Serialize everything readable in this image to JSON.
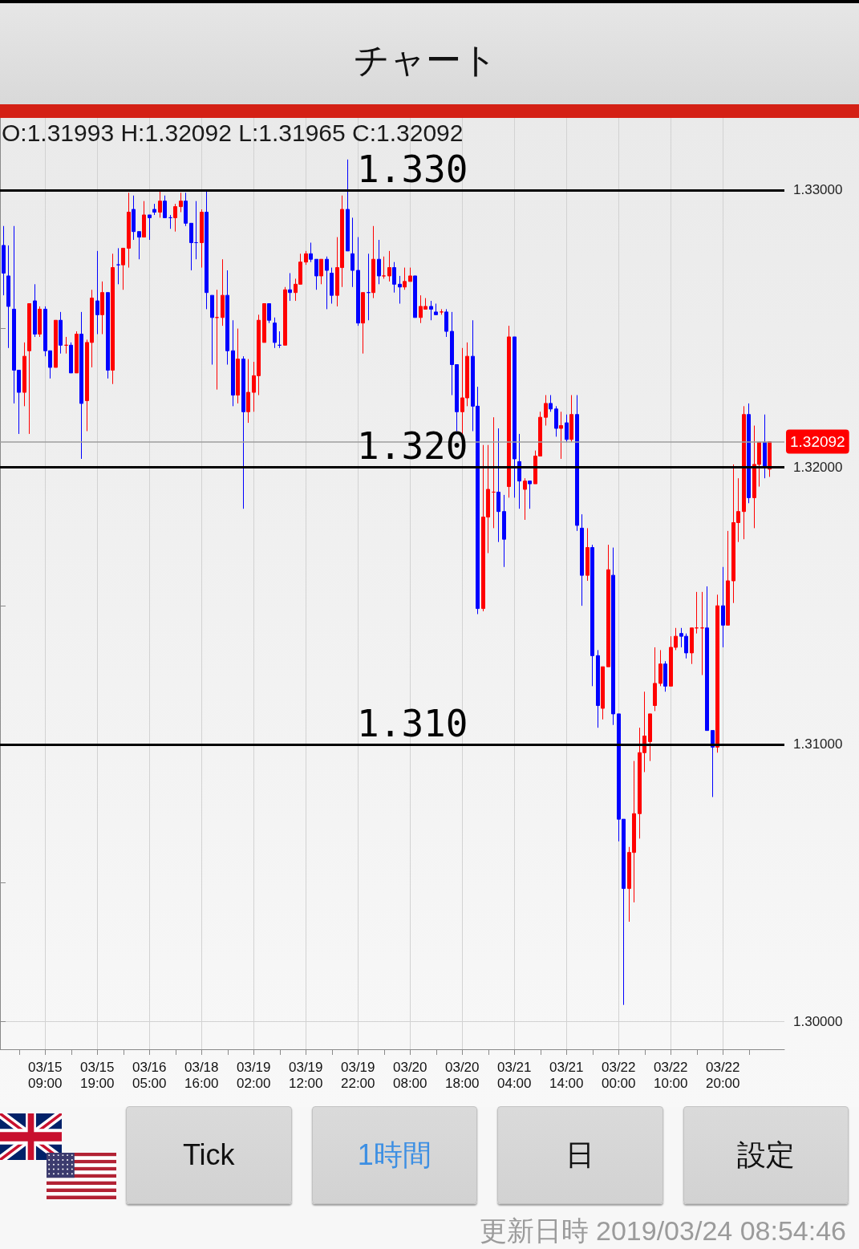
{
  "chart_data": {
    "type": "candlestick",
    "title": "チャート",
    "categories": [
      null,
      null,
      null,
      null,
      null,
      null,
      null,
      null,
      "03/15 09:00",
      null,
      null,
      null,
      null,
      null,
      null,
      null,
      null,
      null,
      "03/15 19:00",
      null,
      null,
      null,
      null,
      null,
      null,
      null,
      null,
      null,
      "03/16 05:00",
      null,
      null,
      null,
      null,
      null,
      null,
      null,
      null,
      null,
      "03/18 16:00",
      null,
      null,
      null,
      null,
      null,
      null,
      null,
      null,
      null,
      "03/19 02:00",
      null,
      null,
      null,
      null,
      null,
      null,
      null,
      null,
      null,
      "03/19 12:00",
      null,
      null,
      null,
      null,
      null,
      null,
      null,
      null,
      null,
      "03/19 22:00",
      null,
      null,
      null,
      null,
      null,
      null,
      null,
      null,
      null,
      "03/20 08:00",
      null,
      null,
      null,
      null,
      null,
      null,
      null,
      null,
      null,
      "03/20 18:00",
      null,
      null,
      null,
      null,
      null,
      null,
      null,
      null,
      null,
      "03/21 04:00",
      null,
      null,
      null,
      null,
      null,
      null,
      null,
      null,
      null,
      "03/21 14:00",
      null,
      null,
      null,
      null,
      null,
      null,
      null,
      null,
      null,
      "03/22 00:00",
      null,
      null,
      null,
      null,
      null,
      null,
      null,
      null,
      null,
      "03/22 10:00",
      null,
      null,
      null,
      null,
      null,
      null,
      null,
      null,
      null,
      "03/22 20:00",
      null,
      null,
      null,
      null,
      null,
      null,
      null,
      null,
      null
    ],
    "ohlc": [
      [
        1.328,
        1.3287,
        1.3262,
        1.327
      ],
      [
        1.3269,
        1.328,
        1.3243,
        1.3258
      ],
      [
        1.3257,
        1.3287,
        1.3223,
        1.3235
      ],
      [
        1.3235,
        1.3235,
        1.3212,
        1.3227
      ],
      [
        1.3227,
        1.3245,
        1.3222,
        1.324
      ],
      [
        1.3242,
        1.3259,
        1.3212,
        1.3259
      ],
      [
        1.326,
        1.3266,
        1.3247,
        1.3248
      ],
      [
        1.3248,
        1.3258,
        1.3247,
        1.3257
      ],
      [
        1.3257,
        1.3258,
        1.324,
        1.3242
      ],
      [
        1.3242,
        1.3242,
        1.3232,
        1.3236
      ],
      [
        1.3236,
        1.3253,
        1.3236,
        1.3253
      ],
      [
        1.3253,
        1.3256,
        1.3241,
        1.3244
      ],
      [
        1.3244,
        1.3247,
        1.3241,
        1.3244
      ],
      [
        1.3244,
        1.3245,
        1.3234,
        1.3234
      ],
      [
        1.3234,
        1.3249,
        1.3234,
        1.3248
      ],
      [
        1.3248,
        1.3256,
        1.3203,
        1.3223
      ],
      [
        1.3224,
        1.3246,
        1.3213,
        1.3245
      ],
      [
        1.3245,
        1.3264,
        1.3236,
        1.3261
      ],
      [
        1.326,
        1.3278,
        1.3248,
        1.3255
      ],
      [
        1.3255,
        1.3267,
        1.3248,
        1.3263
      ],
      [
        1.3263,
        1.3263,
        1.3232,
        1.3235
      ],
      [
        1.3235,
        1.3277,
        1.323,
        1.3272
      ],
      [
        1.3273,
        1.3279,
        1.3266,
        1.3273
      ],
      [
        1.3273,
        1.3279,
        1.3264,
        1.3279
      ],
      [
        1.3279,
        1.3299,
        1.3272,
        1.3292
      ],
      [
        1.3293,
        1.3298,
        1.3282,
        1.3285
      ],
      [
        1.3285,
        1.3285,
        1.3275,
        1.3283
      ],
      [
        1.3283,
        1.3296,
        1.3283,
        1.3291
      ],
      [
        1.3291,
        1.3291,
        1.3282,
        1.329
      ],
      [
        1.3293,
        1.3295,
        1.3291,
        1.3292
      ],
      [
        1.3292,
        1.33,
        1.329,
        1.3296
      ],
      [
        1.3296,
        1.3298,
        1.329,
        1.329
      ],
      [
        1.329,
        1.3291,
        1.3286,
        1.329
      ],
      [
        1.329,
        1.3295,
        1.3285,
        1.3294
      ],
      [
        1.3294,
        1.3299,
        1.3292,
        1.3296
      ],
      [
        1.3296,
        1.3299,
        1.3287,
        1.3288
      ],
      [
        1.3288,
        1.3288,
        1.3271,
        1.3281
      ],
      [
        1.3281,
        1.3296,
        1.3275,
        1.3281
      ],
      [
        1.3281,
        1.3293,
        1.3272,
        1.3292
      ],
      [
        1.3292,
        1.33,
        1.3257,
        1.3263
      ],
      [
        1.3262,
        1.3262,
        1.3237,
        1.3254
      ],
      [
        1.3254,
        1.3264,
        1.3228,
        1.3254
      ],
      [
        1.3254,
        1.3275,
        1.3251,
        1.3262
      ],
      [
        1.3262,
        1.3271,
        1.3237,
        1.3242
      ],
      [
        1.3242,
        1.3253,
        1.3222,
        1.3226
      ],
      [
        1.3226,
        1.325,
        1.3223,
        1.3239
      ],
      [
        1.3239,
        1.324,
        1.3185,
        1.322
      ],
      [
        1.322,
        1.3239,
        1.3216,
        1.3227
      ],
      [
        1.3227,
        1.3238,
        1.322,
        1.3233
      ],
      [
        1.3233,
        1.3255,
        1.3226,
        1.3253
      ],
      [
        1.3245,
        1.3259,
        1.3245,
        1.3259
      ],
      [
        1.3259,
        1.3259,
        1.3252,
        1.3253
      ],
      [
        1.3252,
        1.3254,
        1.3243,
        1.3245
      ],
      [
        1.3244,
        1.3249,
        1.3243,
        1.3244
      ],
      [
        1.3244,
        1.3265,
        1.3244,
        1.3264
      ],
      [
        1.3264,
        1.327,
        1.326,
        1.3263
      ],
      [
        1.3263,
        1.3268,
        1.326,
        1.3266
      ],
      [
        1.3266,
        1.3277,
        1.3266,
        1.3274
      ],
      [
        1.3274,
        1.3278,
        1.3273,
        1.3277
      ],
      [
        1.3277,
        1.3281,
        1.3274,
        1.3275
      ],
      [
        1.3275,
        1.3275,
        1.3264,
        1.3269
      ],
      [
        1.3269,
        1.3275,
        1.3266,
        1.3275
      ],
      [
        1.3275,
        1.3276,
        1.3257,
        1.3271
      ],
      [
        1.327,
        1.3272,
        1.3259,
        1.3262
      ],
      [
        1.3262,
        1.3283,
        1.3258,
        1.3272
      ],
      [
        1.3272,
        1.3298,
        1.3265,
        1.3293
      ],
      [
        1.3293,
        1.3311,
        1.3278,
        1.3278
      ],
      [
        1.3277,
        1.329,
        1.3265,
        1.3271
      ],
      [
        1.3271,
        1.3283,
        1.3251,
        1.3252
      ],
      [
        1.3252,
        1.3263,
        1.3241,
        1.3263
      ],
      [
        1.3263,
        1.3277,
        1.3253,
        1.3263
      ],
      [
        1.3263,
        1.3287,
        1.3261,
        1.3275
      ],
      [
        1.3275,
        1.3282,
        1.3266,
        1.3269
      ],
      [
        1.3269,
        1.3276,
        1.3268,
        1.3269
      ],
      [
        1.3269,
        1.3278,
        1.3267,
        1.3272
      ],
      [
        1.3272,
        1.3274,
        1.3263,
        1.3266
      ],
      [
        1.3266,
        1.3269,
        1.3259,
        1.3265
      ],
      [
        1.3265,
        1.3272,
        1.3264,
        1.3267
      ],
      [
        1.3267,
        1.3272,
        1.3267,
        1.3269
      ],
      [
        1.3269,
        1.3269,
        1.3254,
        1.3254
      ],
      [
        1.3254,
        1.3262,
        1.3252,
        1.3258
      ],
      [
        1.3257,
        1.3261,
        1.3257,
        1.3258
      ],
      [
        1.3258,
        1.326,
        1.3253,
        1.3257
      ],
      [
        1.3256,
        1.3259,
        1.3255,
        1.3255
      ],
      [
        1.3256,
        1.3257,
        1.3255,
        1.3256
      ],
      [
        1.3256,
        1.3257,
        1.3247,
        1.3249
      ],
      [
        1.3249,
        1.3256,
        1.3226,
        1.3237
      ],
      [
        1.3237,
        1.3237,
        1.3213,
        1.322
      ],
      [
        1.322,
        1.3243,
        1.3212,
        1.3225
      ],
      [
        1.3225,
        1.3245,
        1.3222,
        1.324
      ],
      [
        1.324,
        1.3253,
        1.3213,
        1.3222
      ],
      [
        1.3222,
        1.3229,
        1.3147,
        1.3149
      ],
      [
        1.3149,
        1.3208,
        1.3148,
        1.3182
      ],
      [
        1.3182,
        1.3208,
        1.3169,
        1.3192
      ],
      [
        1.3191,
        1.3218,
        1.3178,
        1.3191
      ],
      [
        1.3191,
        1.3214,
        1.3173,
        1.3184
      ],
      [
        1.3184,
        1.319,
        1.3164,
        1.3174
      ],
      [
        1.3193,
        1.3251,
        1.3189,
        1.3247
      ],
      [
        1.3247,
        1.3247,
        1.3189,
        1.3203
      ],
      [
        1.3202,
        1.3212,
        1.3185,
        1.3195
      ],
      [
        1.3192,
        1.3196,
        1.3181,
        1.3195
      ],
      [
        1.3195,
        1.3195,
        1.3185,
        1.3194
      ],
      [
        1.3194,
        1.3206,
        1.3194,
        1.3204
      ],
      [
        1.3204,
        1.322,
        1.3204,
        1.3218
      ],
      [
        1.3218,
        1.3226,
        1.3215,
        1.3223
      ],
      [
        1.3223,
        1.3226,
        1.322,
        1.3221
      ],
      [
        1.3221,
        1.3222,
        1.3211,
        1.3214
      ],
      [
        1.3214,
        1.322,
        1.3203,
        1.3215
      ],
      [
        1.3216,
        1.3219,
        1.3209,
        1.321
      ],
      [
        1.321,
        1.3226,
        1.3209,
        1.3219
      ],
      [
        1.3219,
        1.3226,
        1.3177,
        1.3179
      ],
      [
        1.3178,
        1.3183,
        1.315,
        1.3161
      ],
      [
        1.3161,
        1.3178,
        1.3159,
        1.3171
      ],
      [
        1.3171,
        1.3172,
        1.3121,
        1.3132
      ],
      [
        1.3132,
        1.3134,
        1.3106,
        1.3114
      ],
      [
        1.3113,
        1.3128,
        1.3109,
        1.3128
      ],
      [
        1.3128,
        1.3172,
        1.3128,
        1.3163
      ],
      [
        1.3161,
        1.3171,
        1.3107,
        1.3111
      ],
      [
        1.3111,
        1.3111,
        1.3065,
        1.3073
      ],
      [
        1.3073,
        1.3073,
        1.3006,
        1.3048
      ],
      [
        1.3048,
        1.3063,
        1.3036,
        1.3061
      ],
      [
        1.3061,
        1.3094,
        1.3043,
        1.3075
      ],
      [
        1.3075,
        1.3106,
        1.3066,
        1.3097
      ],
      [
        1.3097,
        1.3119,
        1.309,
        1.3103
      ],
      [
        1.3101,
        1.3111,
        1.3094,
        1.3111
      ],
      [
        1.3114,
        1.3135,
        1.3112,
        1.3122
      ],
      [
        1.3122,
        1.3134,
        1.3121,
        1.3129
      ],
      [
        1.3129,
        1.313,
        1.3119,
        1.3121
      ],
      [
        1.3121,
        1.3139,
        1.3121,
        1.3135
      ],
      [
        1.3135,
        1.3142,
        1.3134,
        1.3139
      ],
      [
        1.314,
        1.3142,
        1.3135,
        1.3139
      ],
      [
        1.3139,
        1.314,
        1.3131,
        1.3133
      ],
      [
        1.3133,
        1.3142,
        1.3129,
        1.3142
      ],
      [
        1.3142,
        1.3155,
        1.314,
        1.3142
      ],
      [
        1.3142,
        1.3155,
        1.3125,
        1.3142
      ],
      [
        1.3142,
        1.3157,
        1.3105,
        1.3105
      ],
      [
        1.3105,
        1.3105,
        1.3081,
        1.3099
      ],
      [
        1.3099,
        1.3154,
        1.3097,
        1.315
      ],
      [
        1.315,
        1.3164,
        1.3135,
        1.3143
      ],
      [
        1.3143,
        1.3177,
        1.3143,
        1.3159
      ],
      [
        1.3159,
        1.3201,
        1.3151,
        1.318
      ],
      [
        1.318,
        1.3196,
        1.3173,
        1.3184
      ],
      [
        1.3184,
        1.3222,
        1.3174,
        1.3219
      ],
      [
        1.3219,
        1.3223,
        1.3187,
        1.3189
      ],
      [
        1.3189,
        1.3215,
        1.3178,
        1.3201
      ],
      [
        1.3201,
        1.3209,
        1.3193,
        1.3209
      ],
      [
        1.3209,
        1.3219,
        1.3196,
        1.32
      ],
      [
        1.31993,
        1.32092,
        1.31965,
        1.32092
      ]
    ],
    "colors": [
      "#0000ff",
      "#0000ff",
      "#0000ff",
      "#0000ff",
      "#ff0000",
      "#ff0000",
      "#0000ff",
      "#ff0000",
      "#0000ff",
      "#0000ff",
      "#ff0000",
      "#0000ff",
      "#ff0000",
      "#0000ff",
      "#ff0000",
      "#0000ff",
      "#ff0000",
      "#ff0000",
      "#0000ff",
      "#ff0000",
      "#0000ff",
      "#ff0000",
      "#0000ff",
      "#ff0000",
      "#ff0000",
      "#0000ff",
      "#0000ff",
      "#ff0000",
      "#0000ff",
      "#0000ff",
      "#ff0000",
      "#0000ff",
      "#0000ff",
      "#ff0000",
      "#ff0000",
      "#0000ff",
      "#0000ff",
      "#0000ff",
      "#ff0000",
      "#0000ff",
      "#0000ff",
      "#ff0000",
      "#ff0000",
      "#0000ff",
      "#0000ff",
      "#ff0000",
      "#0000ff",
      "#ff0000",
      "#ff0000",
      "#ff0000",
      "#ff0000",
      "#0000ff",
      "#0000ff",
      "#0000ff",
      "#ff0000",
      "#0000ff",
      "#ff0000",
      "#ff0000",
      "#ff0000",
      "#0000ff",
      "#0000ff",
      "#ff0000",
      "#0000ff",
      "#0000ff",
      "#ff0000",
      "#ff0000",
      "#0000ff",
      "#0000ff",
      "#0000ff",
      "#ff0000",
      "#0000ff",
      "#ff0000",
      "#0000ff",
      "#ff0000",
      "#ff0000",
      "#0000ff",
      "#0000ff",
      "#ff0000",
      "#ff0000",
      "#0000ff",
      "#ff0000",
      "#ff0000",
      "#0000ff",
      "#0000ff",
      "#ff0000",
      "#0000ff",
      "#0000ff",
      "#0000ff",
      "#ff0000",
      "#ff0000",
      "#0000ff",
      "#0000ff",
      "#ff0000",
      "#ff0000",
      "#ff0000",
      "#0000ff",
      "#0000ff",
      "#ff0000",
      "#0000ff",
      "#0000ff",
      "#ff0000",
      "#0000ff",
      "#ff0000",
      "#ff0000",
      "#ff0000",
      "#0000ff",
      "#0000ff",
      "#ff0000",
      "#0000ff",
      "#ff0000",
      "#0000ff",
      "#0000ff",
      "#ff0000",
      "#0000ff",
      "#0000ff",
      "#ff0000",
      "#ff0000",
      "#0000ff",
      "#0000ff",
      "#0000ff",
      "#ff0000",
      "#ff0000",
      "#ff0000",
      "#ff0000",
      "#ff0000",
      "#ff0000",
      "#ff0000",
      "#0000ff",
      "#ff0000",
      "#ff0000",
      "#0000ff",
      "#0000ff",
      "#ff0000",
      "#ff0000",
      "#ff0000",
      "#0000ff",
      "#0000ff",
      "#ff0000",
      "#0000ff",
      "#ff0000",
      "#ff0000",
      "#ff0000",
      "#ff0000",
      "#0000ff",
      "#ff0000",
      "#ff0000",
      "#0000ff",
      "#ff0000"
    ],
    "ylim": [
      1.299,
      1.3326
    ],
    "yticks": [
      {
        "value": 1.3,
        "label": "1.30000"
      },
      {
        "value": 1.305,
        "label": null
      },
      {
        "value": 1.31,
        "label": "1.31000"
      },
      {
        "value": 1.315,
        "label": null
      },
      {
        "value": 1.32,
        "label": "1.32000"
      },
      {
        "value": 1.325,
        "label": null
      },
      {
        "value": 1.33,
        "label": "1.33000"
      }
    ],
    "grid": true,
    "ref_lines": [
      {
        "axis": "y",
        "value": 1.33,
        "label": "1.330",
        "color": "#000000"
      },
      {
        "axis": "y",
        "value": 1.32,
        "label": "1.320",
        "color": "#000000"
      },
      {
        "axis": "y",
        "value": 1.31,
        "label": "1.310",
        "color": "#000000"
      },
      {
        "axis": "y",
        "value": 1.32092,
        "label": "1.32092",
        "color": "#9e9e9e"
      }
    ],
    "annotations": [
      "O:1.31993 H:1.32092 L:1.31965 C:1.32092",
      "Tick",
      "1時間",
      "日",
      "設定",
      "更新日時 2019/03/24 08:54:46"
    ]
  }
}
